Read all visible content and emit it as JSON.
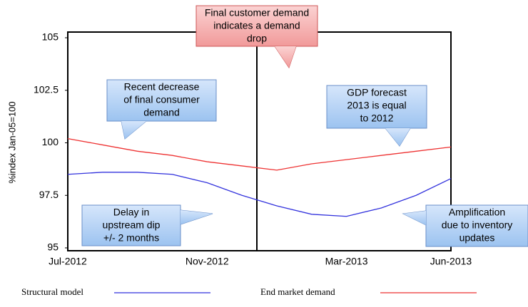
{
  "chart_data": {
    "type": "line",
    "y_label": "%index Jan-05=100",
    "categories": [
      "Jul-2012",
      null,
      null,
      null,
      "Nov-2012",
      null,
      null,
      null,
      "Mar-2013",
      null,
      null,
      "Jun-2013"
    ],
    "ylim": [
      95,
      105
    ],
    "yticks": [
      95,
      97.5,
      100,
      102.5,
      105
    ],
    "series": [
      {
        "name": "Structural model",
        "color": "#3333dd",
        "values": [
          98.5,
          98.6,
          98.6,
          98.5,
          98.1,
          97.5,
          97.0,
          96.6,
          96.5,
          96.9,
          97.5,
          98.3
        ]
      },
      {
        "name": "End market demand",
        "color": "#ee3333",
        "values": [
          100.2,
          99.9,
          99.6,
          99.4,
          99.1,
          98.9,
          98.7,
          99.0,
          99.2,
          99.4,
          99.6,
          99.8
        ]
      }
    ],
    "annotations": [
      {
        "lines": [
          "Final customer demand",
          "indicates a demand",
          "drop"
        ]
      },
      {
        "lines": [
          "Recent decrease",
          "of final consumer",
          "demand"
        ]
      },
      {
        "lines": [
          "GDP forecast",
          "2013 is equal",
          "to 2012"
        ]
      },
      {
        "lines": [
          "Delay in",
          "upstream dip",
          "+/- 2 months"
        ]
      },
      {
        "lines": [
          "Amplification",
          "due to inventory",
          "updates"
        ]
      }
    ]
  }
}
